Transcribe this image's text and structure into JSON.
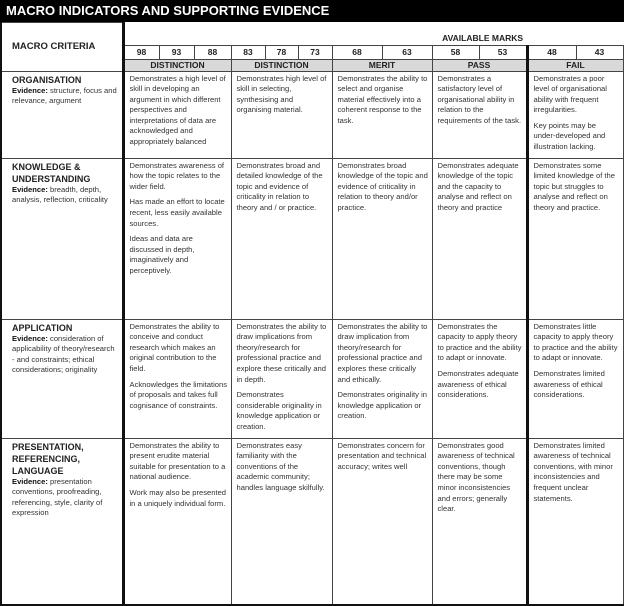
{
  "title": "MACRO INDICATORS AND SUPPORTING EVIDENCE",
  "criteria_header": "MACRO CRITERIA",
  "available_marks": "AVAILABLE MARKS",
  "bands": [
    {
      "label": "DISTINCTION",
      "marks": [
        "98",
        "93",
        "88"
      ]
    },
    {
      "label": "DISTINCTION",
      "marks": [
        "83",
        "78",
        "73"
      ]
    },
    {
      "label": "MERIT",
      "marks": [
        "68",
        "63"
      ]
    },
    {
      "label": "PASS",
      "marks": [
        "58",
        "53"
      ]
    },
    {
      "label": "FAIL",
      "marks": [
        "48",
        "43"
      ]
    }
  ],
  "rows": [
    {
      "name": "ORGANISATION",
      "evidence_label": "Evidence",
      "evidence": "structure, focus and relevance, argument",
      "cells": [
        [
          "Demonstrates a high level of skill in developing an argument in which different perspectives and interpretations of data are acknowledged and appropriately balanced"
        ],
        [
          "Demonstrates high level of skill in selecting, synthesising and organising material."
        ],
        [
          "Demonstrates the ability to select and organise material effectively into a coherent response to the task."
        ],
        [
          "Demonstrates a satisfactory level of organisational ability in relation to the requirements of the task."
        ],
        [
          "Demonstrates a poor level of organisational ability with frequent irregularities.",
          "Key points may be under-developed and illustration lacking."
        ]
      ]
    },
    {
      "name": "KNOWLEDGE & UNDERSTANDING",
      "evidence_label": "Evidence",
      "evidence": "breadth, depth, analysis, reflection, criticality",
      "cells": [
        [
          "Demonstrates awareness of how the topic relates to the wider field.",
          "Has made an effort to locate recent, less easily available sources.",
          "Ideas and data are discussed in depth, imaginatively and perceptively."
        ],
        [
          "Demonstrates broad and detailed knowledge of the topic and evidence of criticality in relation to theory and / or practice."
        ],
        [
          "Demonstrates broad knowledge of the topic and evidence of criticality in relation to theory and/or practice."
        ],
        [
          "Demonstrates adequate knowledge of the topic and the capacity to analyse and reflect on theory and practice"
        ],
        [
          "Demonstrates some limited knowledge of the topic but struggles to analyse and reflect on theory and practice."
        ]
      ]
    },
    {
      "name": "APPLICATION",
      "evidence_label": "Evidence",
      "evidence": "consideration of applicability of theory/research - and constraints; ethical considerations; originality",
      "cells": [
        [
          "Demonstrates the ability to conceive and conduct research which makes an original contribution to the field.",
          "Acknowledges the limitations of proposals and takes full cognisance of constraints."
        ],
        [
          "Demonstrates the ability to draw implications from theory/research for professional practice and explore these critically and in depth.",
          "Demonstrates considerable originality in knowledge application or creation."
        ],
        [
          "Demonstrates the ability to draw implication from theory/research for professional practice and explores these critically and ethically.",
          "Demonstrates originality in knowledge application or creation."
        ],
        [
          "Demonstrates the capacity to apply theory to practice and the ability to adapt or innovate.",
          "Demonstrates adequate awareness of ethical considerations."
        ],
        [
          "Demonstrates little capacity to apply theory to practice and the ability to adapt or innovate.",
          "Demonstrates limited awareness of ethical considerations."
        ]
      ]
    },
    {
      "name": "PRESENTATION, REFERENCING, LANGUAGE",
      "evidence_label": "Evidence",
      "evidence": "presentation conventions, proofreading, referencing, style, clarity of expression",
      "cells": [
        [
          "Demonstrates the ability to present erudite material suitable for presentation to a national audience.",
          "Work may also be presented in a uniquely individual form."
        ],
        [
          "Demonstrates easy familiarity with the conventions of the academic community; handles language skilfully."
        ],
        [
          "Demonstrates concern for presentation and technical accuracy; writes well"
        ],
        [
          "Demonstrates good awareness of technical conventions, though there may be some minor inconsistencies and errors; generally clear."
        ],
        [
          "Demonstrates limited awareness of technical conventions, with minor inconsistencies and frequent unclear statements."
        ]
      ]
    }
  ]
}
